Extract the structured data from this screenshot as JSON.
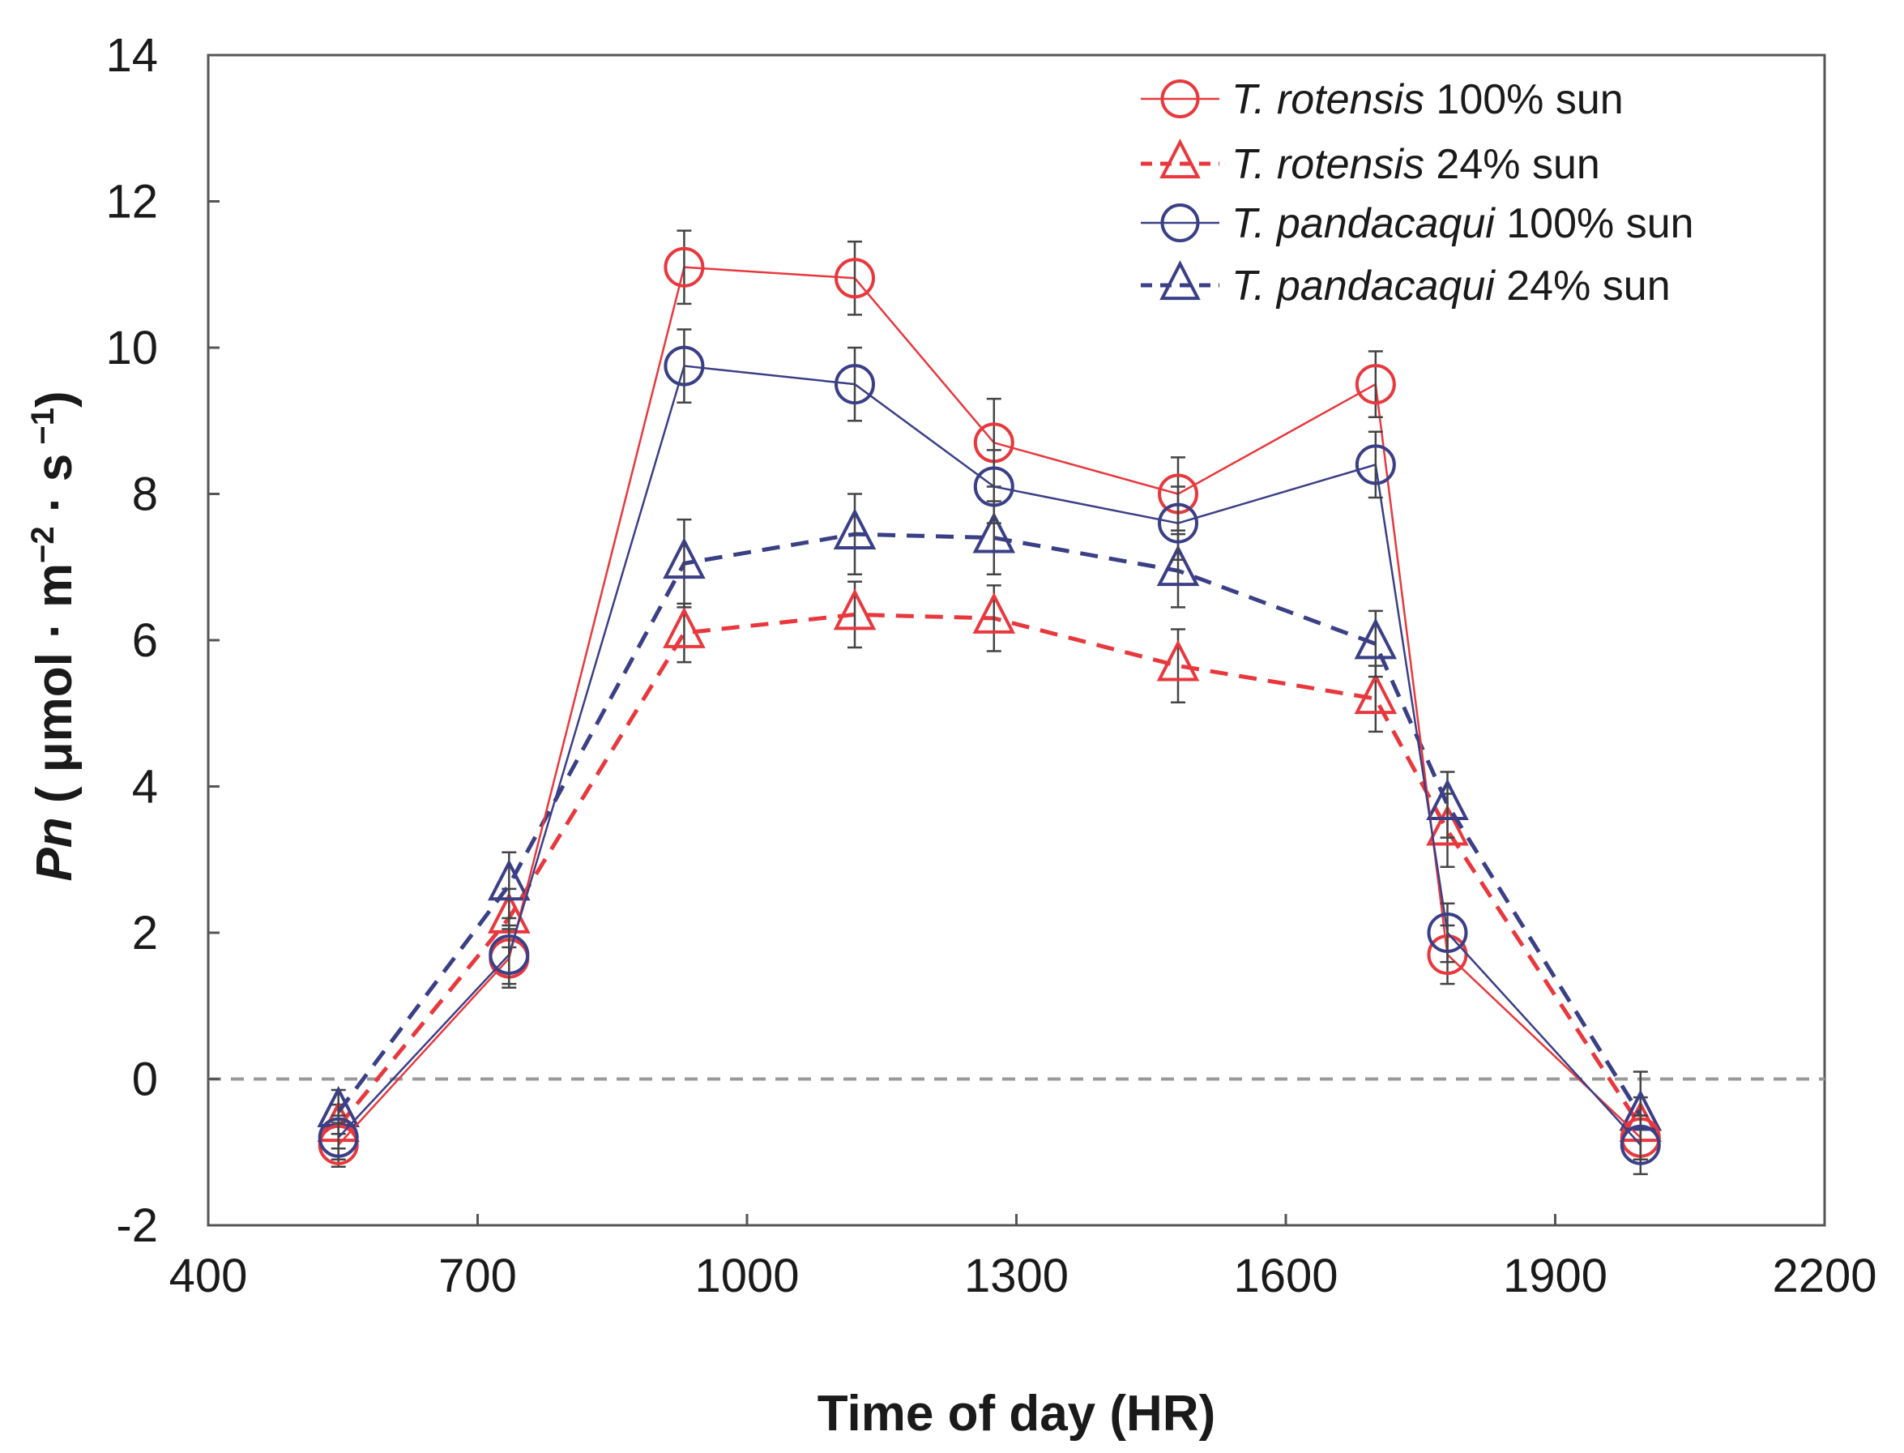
{
  "chart_data": {
    "type": "line",
    "xlabel": "Time of day (HR)",
    "ylabel": {
      "prefix": "Pn",
      "unit_open": " ( μmol · m",
      "sup1": "−2",
      "mid": " · s",
      "sup2": " −1",
      "close": ")"
    },
    "xlim": [
      400,
      2200
    ],
    "ylim": [
      -2,
      14
    ],
    "xticks": [
      400,
      700,
      1000,
      1300,
      1600,
      1900,
      2200
    ],
    "yticks": [
      -2,
      0,
      2,
      4,
      6,
      8,
      10,
      12,
      14
    ],
    "zero_reference_line": true,
    "legend_position": "top-right",
    "series": [
      {
        "name": "T. rotensis 100% sun",
        "species": "T. rotensis",
        "treatment": "100% sun",
        "color": "#e8383d",
        "marker": "circle",
        "line": "solid",
        "x": [
          545,
          735,
          930,
          1120,
          1275,
          1480,
          1700,
          1780,
          1995
        ],
        "y": [
          -0.9,
          1.65,
          11.1,
          10.95,
          8.7,
          8.0,
          9.5,
          1.7,
          -0.8
        ],
        "err": [
          0.3,
          0.4,
          0.5,
          0.5,
          0.6,
          0.5,
          0.45,
          0.4,
          0.3
        ]
      },
      {
        "name": "T. rotensis 24% sun",
        "species": "T. rotensis",
        "treatment": "24% sun",
        "color": "#e8383d",
        "marker": "triangle",
        "line": "dashed",
        "x": [
          545,
          735,
          930,
          1120,
          1275,
          1480,
          1700,
          1780,
          1995
        ],
        "y": [
          -0.65,
          2.2,
          6.1,
          6.35,
          6.3,
          5.65,
          5.2,
          3.4,
          -0.65
        ],
        "err": [
          0.3,
          0.4,
          0.4,
          0.45,
          0.45,
          0.5,
          0.45,
          0.5,
          0.4
        ]
      },
      {
        "name": "T. pandacaqui 100% sun",
        "species": "T. pandacaqui",
        "treatment": "100% sun",
        "color": "#3a3f86",
        "marker": "circle",
        "line": "solid",
        "x": [
          545,
          735,
          930,
          1120,
          1275,
          1480,
          1700,
          1780,
          1995
        ],
        "y": [
          -0.8,
          1.7,
          9.75,
          9.5,
          8.1,
          7.6,
          8.4,
          2.0,
          -0.9
        ],
        "err": [
          0.3,
          0.4,
          0.5,
          0.5,
          0.5,
          0.5,
          0.45,
          0.4,
          0.4
        ]
      },
      {
        "name": "T. pandacaqui 24% sun",
        "species": "T. pandacaqui",
        "treatment": "24% sun",
        "color": "#3a3f86",
        "marker": "triangle",
        "line": "dashed",
        "x": [
          545,
          735,
          930,
          1120,
          1275,
          1480,
          1700,
          1780,
          1995
        ],
        "y": [
          -0.45,
          2.65,
          7.05,
          7.45,
          7.4,
          6.95,
          5.95,
          3.75,
          -0.5
        ],
        "err": [
          0.3,
          0.45,
          0.6,
          0.55,
          0.5,
          0.5,
          0.45,
          0.45,
          0.6
        ]
      }
    ]
  }
}
